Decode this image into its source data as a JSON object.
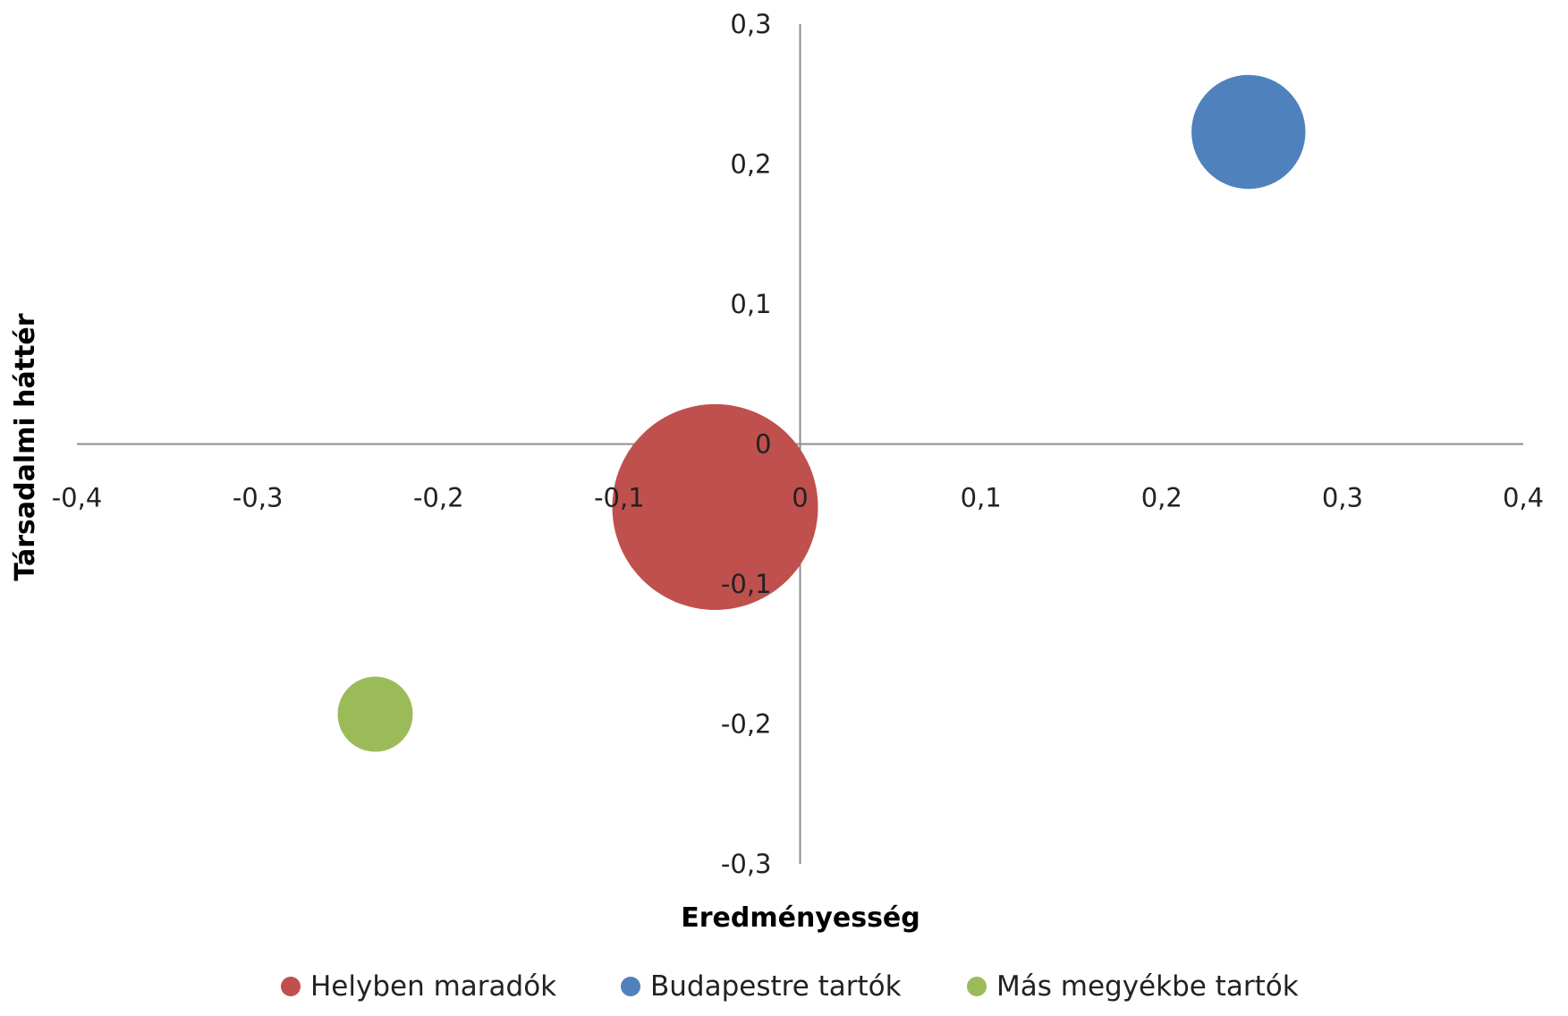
{
  "chart_data": {
    "type": "bubble",
    "title": "",
    "xlabel": "Eredményesség",
    "ylabel": "Társadalmi háttér",
    "xlim": [
      -0.4,
      0.4
    ],
    "ylim": [
      -0.3,
      0.3
    ],
    "x_ticks": [
      -0.4,
      -0.3,
      -0.2,
      -0.1,
      0,
      0.1,
      0.2,
      0.3,
      0.4
    ],
    "y_ticks": [
      -0.3,
      -0.2,
      -0.1,
      0,
      0.1,
      0.2,
      0.3
    ],
    "x_tick_labels": [
      "-0,4",
      "-0,3",
      "-0,2",
      "-0,1",
      "0",
      "0,1",
      "0,2",
      "0,3",
      "0,4"
    ],
    "y_tick_labels": [
      "-0,3",
      "-0,2",
      "-0,1",
      "0",
      "0,1",
      "0,2",
      "0,3"
    ],
    "grid": false,
    "legend_position": "bottom",
    "series": [
      {
        "name": "Helyben maradók",
        "color": "#C0504D",
        "points": [
          {
            "x": -0.047,
            "y": -0.045,
            "size": 7.5
          }
        ]
      },
      {
        "name": "Budapestre tartók",
        "color": "#4F81BD",
        "points": [
          {
            "x": 0.248,
            "y": 0.223,
            "size": 2.3
          }
        ]
      },
      {
        "name": "Más megyékbe tartók",
        "color": "#9BBB59",
        "points": [
          {
            "x": -0.235,
            "y": -0.193,
            "size": 1.0
          }
        ]
      }
    ]
  }
}
